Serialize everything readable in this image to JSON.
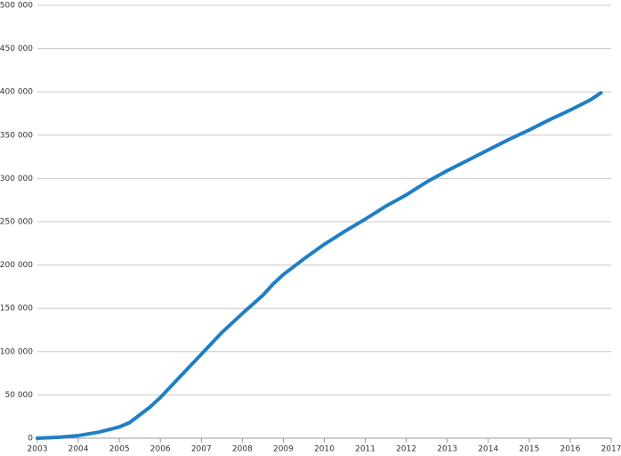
{
  "chart_data": {
    "type": "line",
    "x": [
      2003,
      2003.5,
      2004,
      2004.5,
      2005,
      2005.25,
      2005.5,
      2005.75,
      2006,
      2006.5,
      2007,
      2007.5,
      2008,
      2008.5,
      2008.75,
      2009,
      2009.5,
      2010,
      2010.5,
      2011,
      2011.5,
      2012,
      2012.5,
      2013,
      2013.5,
      2014,
      2014.5,
      2015,
      2015.5,
      2016,
      2016.5,
      2016.75
    ],
    "series": [
      {
        "color": "#1f7fc4",
        "values": [
          0,
          1000,
          3000,
          7000,
          13000,
          18000,
          27000,
          36000,
          47000,
          72000,
          97000,
          122000,
          144000,
          165000,
          178000,
          189000,
          207000,
          224000,
          239000,
          253000,
          268000,
          281000,
          296000,
          309000,
          321000,
          333000,
          345000,
          356000,
          368000,
          379000,
          391000,
          399000
        ]
      }
    ],
    "xlim": [
      2003,
      2017
    ],
    "xticks": [
      2003,
      2004,
      2005,
      2006,
      2007,
      2008,
      2009,
      2010,
      2011,
      2012,
      2013,
      2014,
      2015,
      2016,
      2017
    ],
    "ylim": [
      0,
      500000
    ],
    "yticks": [
      0,
      {
        "value": 50000,
        "label": "50 000"
      },
      {
        "value": 100000,
        "label": "100 000"
      },
      {
        "value": 150000,
        "label": "150 000"
      },
      {
        "value": 200000,
        "label": "200 000"
      },
      {
        "value": 250000,
        "label": "250 000"
      },
      {
        "value": 300000,
        "label": "300 000"
      },
      {
        "value": 350000,
        "label": "350 000"
      },
      {
        "value": 400000,
        "label": "400 000"
      },
      {
        "value": 450000,
        "label": "450 000"
      },
      {
        "value": 500000,
        "label": "500 000"
      }
    ],
    "grid": true
  }
}
